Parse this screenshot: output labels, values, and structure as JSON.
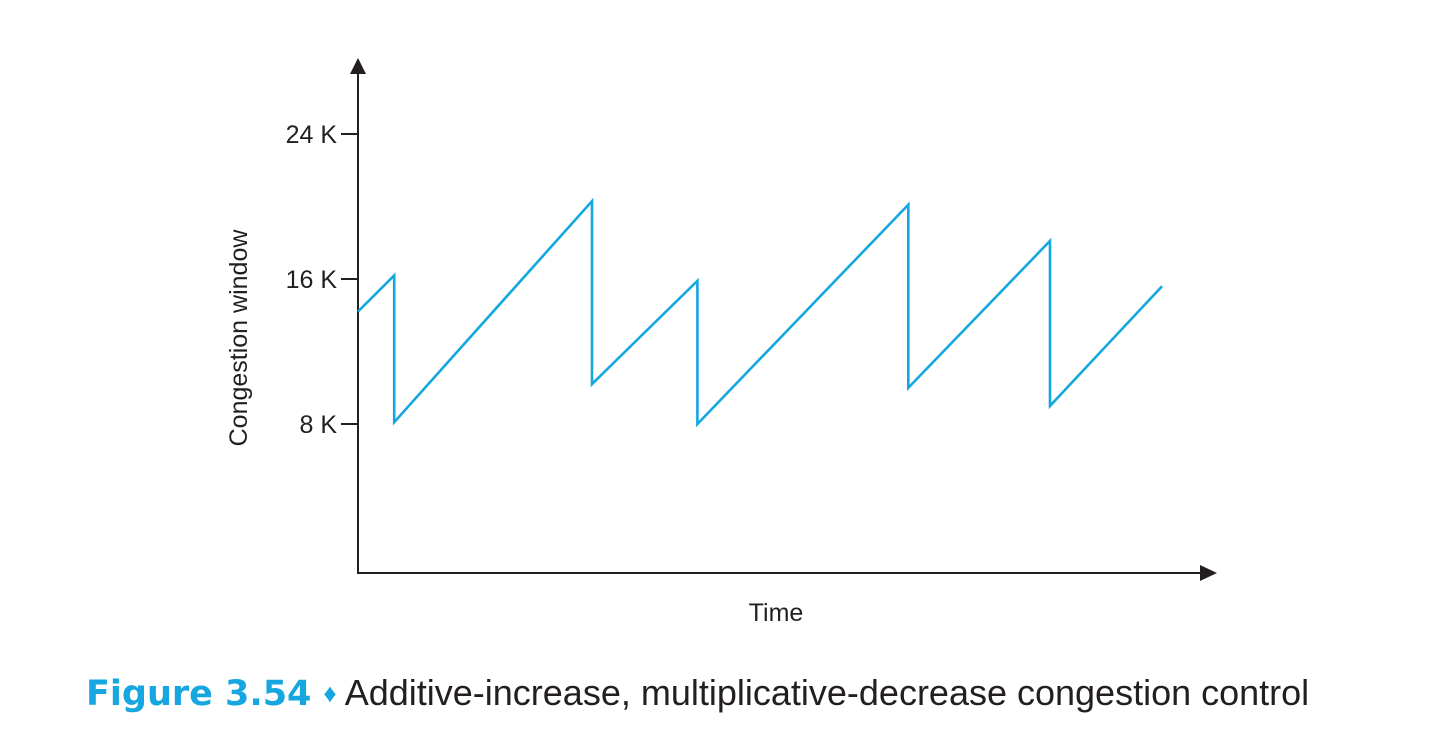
{
  "chart_data": {
    "type": "line",
    "title": "",
    "xlabel": "Time",
    "ylabel": "Congestion window",
    "ylim": [
      0,
      28.3
    ],
    "yticks": [
      {
        "value": 8,
        "label": "8 K"
      },
      {
        "value": 16,
        "label": "16 K"
      },
      {
        "value": 24,
        "label": "24 K"
      }
    ],
    "xlim": [
      0,
      24.4
    ],
    "grid": false,
    "series": [
      {
        "color": "#16a7e0",
        "points": [
          [
            0,
            14.2
          ],
          [
            1.1,
            16.2
          ],
          [
            1.1,
            8.1
          ],
          [
            7.1,
            20.3
          ],
          [
            7.1,
            10.2
          ],
          [
            10.3,
            15.9
          ],
          [
            10.3,
            8.0
          ],
          [
            16.7,
            20.1
          ],
          [
            16.7,
            10.0
          ],
          [
            21.0,
            18.1
          ],
          [
            21.0,
            9.0
          ],
          [
            24.4,
            15.6
          ]
        ]
      }
    ]
  },
  "caption": {
    "figure_label": "Figure 3.54",
    "separator": "♦",
    "text": "Additive-increase, multiplicative-decrease congestion control",
    "accent_color": "#16a7e0"
  }
}
